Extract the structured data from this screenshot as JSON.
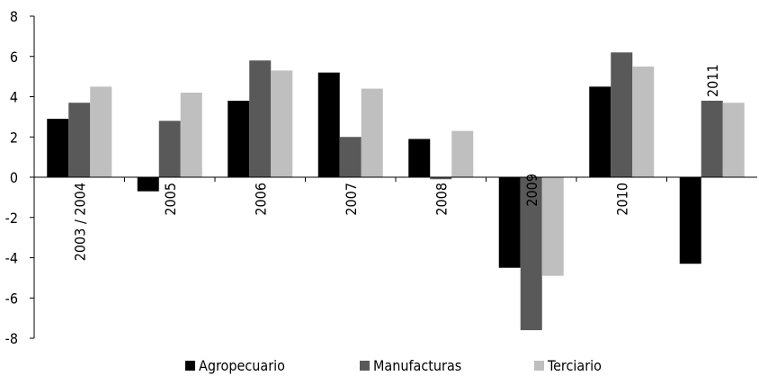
{
  "chart_data": {
    "type": "bar",
    "categories": [
      "2003 / 2004",
      "2005",
      "2006",
      "2007",
      "2008",
      "2009",
      "2010",
      "2011"
    ],
    "series": [
      {
        "name": "Agropecuario",
        "color": "#000000",
        "values": [
          2.9,
          -0.7,
          3.8,
          5.2,
          1.9,
          -4.5,
          4.5,
          -4.3
        ]
      },
      {
        "name": "Manufacturas",
        "color": "#595959",
        "values": [
          3.7,
          2.8,
          5.8,
          2.0,
          -0.1,
          -7.6,
          6.2,
          3.8
        ]
      },
      {
        "name": "Terciario",
        "color": "#bfbfbf",
        "values": [
          4.5,
          4.2,
          5.3,
          4.4,
          2.3,
          -4.9,
          5.5,
          3.7
        ]
      }
    ],
    "yticks": [
      "8",
      "6",
      "4",
      "2",
      "0",
      "-2",
      "-4",
      "-6",
      "-8"
    ],
    "ylim": [
      -8,
      8
    ],
    "grid": false,
    "legend_position": "bottom-center",
    "title": "",
    "xlabel": "",
    "ylabel": ""
  }
}
